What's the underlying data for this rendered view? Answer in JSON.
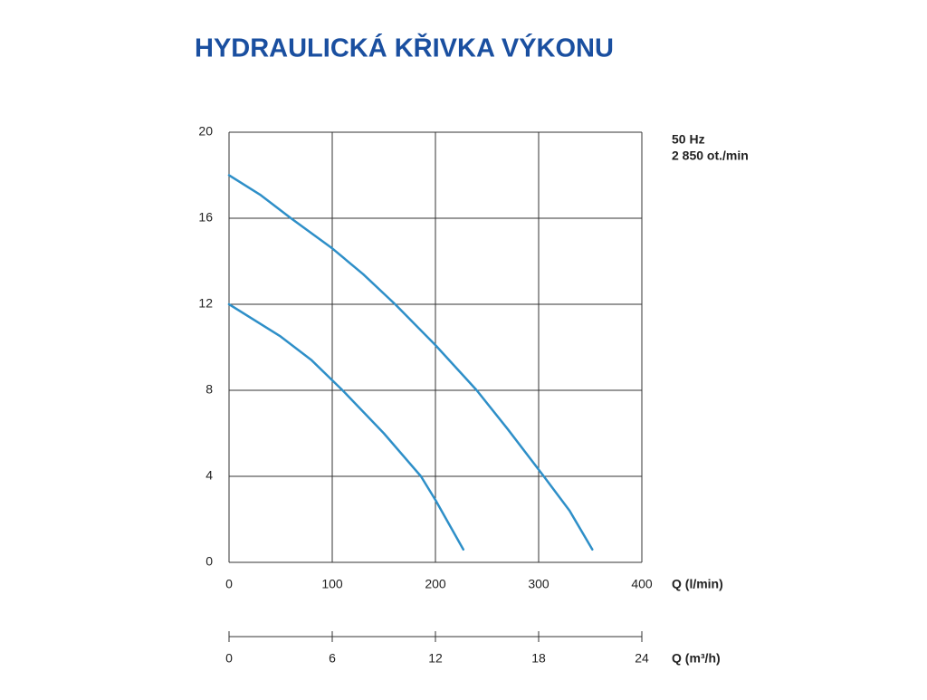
{
  "chart_data": {
    "type": "line",
    "title": "HYDRAULICKÁ KŘIVKA VÝKONU",
    "annotations": [
      "50 Hz",
      "2 850 ot./min"
    ],
    "xlabel": "Q (l/min)",
    "x2label": "Q (m³/h)",
    "xlim": [
      0,
      400
    ],
    "xticks": [
      0,
      100,
      200,
      300,
      400
    ],
    "x2lim": [
      0,
      24
    ],
    "x2ticks": [
      0,
      6,
      12,
      18,
      24
    ],
    "ylim": [
      0,
      20
    ],
    "yticks": [
      0,
      4,
      8,
      12,
      16,
      20
    ],
    "grid": true,
    "series": [
      {
        "color": "#2e8fc8",
        "x": [
          0,
          30,
          60,
          100,
          130,
          161,
          200,
          240,
          270,
          305,
          330,
          352
        ],
        "values": [
          18,
          17.1,
          16,
          14.6,
          13.4,
          12,
          10.1,
          8,
          6.2,
          4,
          2.4,
          0.6
        ]
      },
      {
        "color": "#2e8fc8",
        "x": [
          0,
          50,
          80,
          110,
          150,
          186,
          200,
          227
        ],
        "values": [
          12,
          10.5,
          9.4,
          8,
          6,
          4,
          2.9,
          0.6
        ]
      }
    ]
  }
}
